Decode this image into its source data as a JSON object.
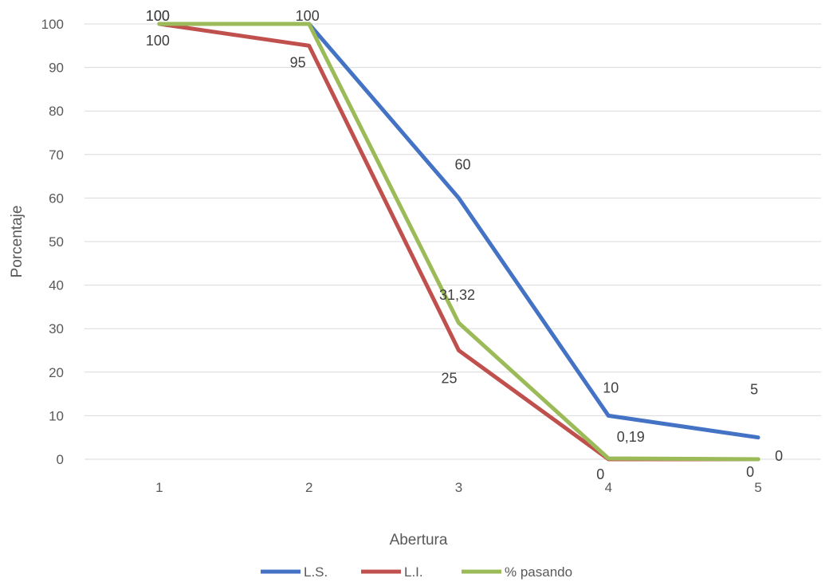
{
  "chart_data": {
    "type": "line",
    "title": "",
    "xlabel": "Abertura",
    "ylabel": "Porcentaje",
    "categories": [
      "1",
      "2",
      "3",
      "4",
      "5"
    ],
    "ylim": [
      0,
      100
    ],
    "yticks": [
      0,
      10,
      20,
      30,
      40,
      50,
      60,
      70,
      80,
      90,
      100
    ],
    "grid": true,
    "legend_position": "bottom",
    "series": [
      {
        "name": "L.S.",
        "color": "#4472c4",
        "values": [
          100,
          100,
          60,
          10,
          5
        ],
        "labels": [
          "100",
          "100",
          "60",
          "10",
          "5"
        ]
      },
      {
        "name": "L.I.",
        "color": "#c0504d",
        "values": [
          100,
          95,
          25,
          0,
          0
        ],
        "labels": [
          "100",
          "95",
          "25",
          "0",
          "0"
        ]
      },
      {
        "name": "% pasando",
        "color": "#9bbb59",
        "values": [
          100,
          100,
          31.32,
          0.19,
          0
        ],
        "labels": [
          "100",
          "100",
          "31,32",
          "0,19",
          "0"
        ]
      }
    ]
  }
}
